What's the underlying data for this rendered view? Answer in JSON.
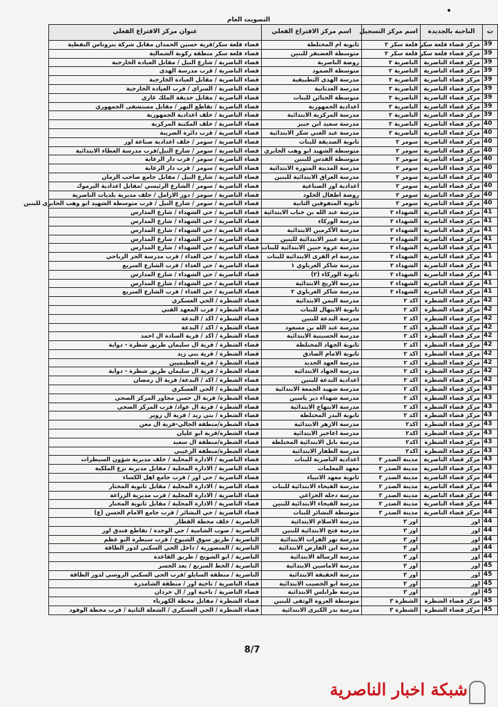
{
  "document": {
    "title": "التصويت العام",
    "page_number": "8/7"
  },
  "logo": {
    "text": "شبكة اخبار الناصرية",
    "color": "#c8161d"
  },
  "table": {
    "headers": [
      "ت",
      "الناحية بالجديدة",
      "اسم مركز التسجيل",
      "اسم مركز الاقتراع الفعلي",
      "عنوان مركز الاقتراع الفعلي"
    ],
    "rows": [
      [
        "39",
        "مركز قضاء قلعة سكر",
        "قلعة سكر ٢",
        "ثانوية ام المختلطة",
        "قضاء قلعة سكر/قرية حسين الحمدان مقابل شركة بتروناس النفطية"
      ],
      [
        "39",
        "مركز قضاء قلعة سكر",
        "قلعة سكر ٢",
        "متوسطة الغضنفر للبنين",
        "قضاء قلعة سكر منطقة ركوبة الشمالية"
      ],
      [
        "39",
        "مركز قضاء الناصرية",
        "الناصرية ٢",
        "روضة الناصرية",
        "قضاء الناصرية / شارع النيل / مقابل العيادة الخارجية"
      ],
      [
        "39",
        "مركز قضاء الناصرية",
        "الناصرية ٢",
        "متوسطة الصمود",
        "قضاء الناصرية / قرب مدرسة الهدى"
      ],
      [
        "39",
        "مركز قضاء الناصرية",
        "الناصرية ٢",
        "مدرسة الهدى التطبيقية",
        "قضاء الناصرية / مقابل العيادة الخارجية"
      ],
      [
        "39",
        "مركز قضاء الناصرية",
        "الناصرية ٢",
        "مدرسة العدنانية",
        "قضاء الناصرية / السراي / قرب العيادة الخارجية"
      ],
      [
        "39",
        "مركز قضاء الناصرية",
        "الناصرية ٢",
        "متوسطة الجنائن للبنات",
        "قضاء الناصرية / مقابل حديقة الملك غازي"
      ],
      [
        "39",
        "مركز قضاء الناصرية",
        "الناصرية ٢",
        "اعدادية الجمهورية",
        "قضاء الناصرية / تقاطع النهر / مقابل مستشفى الجمهوري"
      ],
      [
        "39",
        "مركز قضاء الناصرية",
        "الناصرية ٢",
        "مدرسة المركزية الابتدائية",
        "قضاء الناصرية / خلف اعدادية الجمهورية"
      ],
      [
        "40",
        "مركز قضاء الناصرية",
        "الناصرية ٢",
        "مدرسة سعيد ابن جبير",
        "قضاء الناصرية / خلف المكتبة المركزية"
      ],
      [
        "40",
        "مركز قضاء الناصرية",
        "الناصرية ٢",
        "مدرسة عبد الغني شكر الابتدائية",
        "قضاء الناصرية / قرب دائرة الضريبة"
      ],
      [
        "40",
        "مركز قضاء الناصرية",
        "سومر ٢",
        "ثانوية الصديقة للبنات",
        "قضاء الناصرية / سومر / خلف اعدادية صناعة اور"
      ],
      [
        "40",
        "مركز قضاء الناصرية",
        "سومر ٢",
        "متوسطة الشهيد ابو وهب الجابري",
        "قضاء الناصرية / سومر / شارع النيل/قرب مدرسة العطاء الابتدائية"
      ],
      [
        "40",
        "مركز قضاء الناصرية",
        "سومر ٢",
        "متوسطة القدس للبنين",
        "قضاء الناصرية / سومر / قرب دار الرعاية"
      ],
      [
        "40",
        "مركز قضاء الناصرية",
        "سومر ٢",
        "مدرسة المدينة المنورة الابتدائية",
        "قضاء الناصرية / سومر / قرب دار الرعاية"
      ],
      [
        "40",
        "مركز قضاء الناصرية",
        "سومر ٢",
        "مدرسة العراق الابتدائية للبنين",
        "قضاء الناصرية / شارع النيل / مقابل جامع صاحب الزمان"
      ],
      [
        "40",
        "مركز قضاء الناصرية",
        "سومر ٢",
        "اعدادية اور الصناعية",
        "قضاء الناصرية / سومر / الشارع الرئيسي /مقابل اعدادية اليرموك"
      ],
      [
        "40",
        "مركز قضاء الناصرية",
        "سومر ٢",
        "روضة اطفال الخلود",
        "قضاء الناصرية / سومر / دور الارامل / خلف مديرية بلديات الناصرية"
      ],
      [
        "40",
        "مركز قضاء الناصرية",
        "سومر ٢",
        "ثانوية المتفوقين الثانية",
        "قضاء الناصرية / سومر / شارع النيل / قرب متوسطة الشهيد ابو وهب الجابري للبنين"
      ],
      [
        "41",
        "مركز قضاء الناصرية",
        "الشهداء ٢",
        "مدرسة عبد الله بن خباب الابتدائية",
        "قضاء الناصرية / حي الشهداء / شارع المدارس"
      ],
      [
        "41",
        "مركز قضاء الناصرية",
        "الشهداء ٢",
        "مدرسة الوركاء",
        "قضاء الناصرية / حي الشهداء / شارع المدارس"
      ],
      [
        "41",
        "مركز قضاء الناصرية",
        "الشهداء ٢",
        "مدرسة الأكرمين الابتدائية",
        "قضاء الناصرية / حي الشهداء / شارع المدارس"
      ],
      [
        "41",
        "مركز قضاء الناصرية",
        "الشهداء ٢",
        "مدرسة عبير الابتدائية للبنين",
        "قضاء الناصرية / حي الشهداء / شارع المدارس"
      ],
      [
        "41",
        "مركز قضاء الناصرية",
        "الشهداء ٢",
        "مدرسة عروة حنين الابتدائية للبنات",
        "قضاء الناصرية / حي الشهداء / شارع المدارس"
      ],
      [
        "41",
        "مركز قضاء الناصرية",
        "الشهداء ٢",
        "مدرسة ام القرى الابتدائية للبنات",
        "قضاء الناصرية / حي الغداء / قرب مدرسة الحر الرياحي"
      ],
      [
        "41",
        "مركز قضاء الناصرية",
        "الشهداء ٢",
        "مدرسة شاكر الغرباوي ١",
        "قضاء الناصرية / حي الغداء / قرب الشارع السريع"
      ],
      [
        "41",
        "مركز قضاء الناصرية",
        "الشهداء ٢",
        "ثانوية الوركاء (٢)",
        "قضاء الناصرية / حي الشهداء / شارع المدارس"
      ],
      [
        "41",
        "مركز قضاء الناصرية",
        "الشهداء ٢",
        "مدرسة الاريج الابتدائية",
        "قضاء الناصرية / حي الشهداء / شارع المدارس"
      ],
      [
        "41",
        "مركز قضاء الناصرية",
        "الشهداء ٢",
        "مدرسة شاكر الغرباوي ٢",
        "قضاء الناصرية / حي الغداء / قرب الشارع السريع"
      ],
      [
        "42",
        "مركز قضاء الشطرة",
        "اكد ٢",
        "مدرسة اليمن الابتدائية",
        "قضاء الشطرة / الحي العسكري"
      ],
      [
        "42",
        "مركز قضاء الشطرة",
        "اكد ٢",
        "ثانوية الابتهال للبنات",
        "قضاء الشطرة / قرب المعهد الفني"
      ],
      [
        "42",
        "مركز قضاء الشطرة",
        "اكد ٢",
        "مدرسة البدعة للبنين",
        "قضاء الشطرة / اكد / البدعة"
      ],
      [
        "42",
        "مركز قضاء الشطرة",
        "اكد ٢",
        "مدرسة عبد الله بن مسعود",
        "قضاء الشطرة / اكد / البدعة"
      ],
      [
        "42",
        "مركز قضاء الشطرة",
        "اكد ٢",
        "مدرسة الحسينية الابتدائية",
        "قضاء الشطرة / اكد / قرية السادة ال احمد"
      ],
      [
        "42",
        "مركز قضاء الشطرة",
        "اكد ٢",
        "ثانوية الجهاد المختلطة",
        "قضاء الشطرة / قرية ال سليمان طريق شطرة - دواية"
      ],
      [
        "42",
        "مركز قضاء الشطرة",
        "اكد ٢",
        "ثانوية الامام الصادق",
        "قضاء الشطرة / قرية بني زيد"
      ],
      [
        "42",
        "مركز قضاء الشطرة",
        "اكد ٢",
        "مدرسة العهد الجديد",
        "قضاء الشطرة / قرية العظيميين"
      ],
      [
        "42",
        "مركز قضاء الشطرة",
        "اكد ٢",
        "مدرسة الجهاد الابتدائية",
        "قضاء الشطرة / قرية ال سليمان طريق شطرة - دواية"
      ],
      [
        "42",
        "مركز قضاء الشطرة",
        "اكد ٢",
        "اعدادية البدعة للبنين",
        "قضاء الشطرة / اكد / البدعة/ قرية ال رمضان"
      ],
      [
        "43",
        "مركز قضاء الشطرة",
        "اكد ٢",
        "مدرسة شهيد الجمعة الابتدائية",
        "قضاء الشطرة / الحي العسكري"
      ],
      [
        "43",
        "مركز قضاء الشطرة",
        "اكد ٢",
        "مدرسة شهداء دير ياسين",
        "قضاء الشطرة/ قرية ال حسن مجاور المركز الصحي"
      ],
      [
        "43",
        "مركز قضاء الشطرة",
        "اكد ٢",
        "مدرسة الابتهاج الابتدائية",
        "قضاء الشطرة / قرية ال عواد/ قرب المركز الصحي"
      ],
      [
        "43",
        "مركز قضاء الشطرة",
        "اكد ٢",
        "ثانوية البدر المختلطة",
        "قضاء الشطرة / بني زيد / قرية ال زوير"
      ],
      [
        "43",
        "مركز قضاء الشطرة",
        "اكد٢",
        "مدرسة الازهر الابتدائية",
        "قضاء الشطرة/منطقة الجالي-قرية ال معن"
      ],
      [
        "43",
        "مركز قضاء الشطرة",
        "اكد٢",
        "مدرسة اعاخير الابتدائية",
        "قضاء الشطرة/قرية ابو عليان"
      ],
      [
        "43",
        "مركز قضاء الشطرة",
        "اكد٢",
        "مدرسة بابل الابتدائية المختلطة",
        "قضاء الشطرة/منطقة ال سعيد"
      ],
      [
        "43",
        "مركز قضاء الشطرة",
        "اكد٢",
        "مدرسة الطفار الابتدائية",
        "قضاء الشطرة/منطقة الزعيبي"
      ],
      [
        "43",
        "مركز قضاء الناصرية",
        "مدينة الصدر ٢",
        "اعدادية الناصرية للبنات",
        "قضاء الناصرية / الادارة المحلية / خلف مديرية شؤون السيطرات"
      ],
      [
        "43",
        "مركز قضاء الناصرية",
        "مدينة الصدر ٢",
        "معهد المعلمات",
        "قضاء الناصرية / الادارة المحلية / مقابل مديرية نزع الملكية"
      ],
      [
        "44",
        "مركز قضاء الناصرية",
        "مدينة الصدر ٢",
        "ثانوية معهد الانبياء",
        "قضاء الناصرية / حي اور / قرب جامع اهل الكساء"
      ],
      [
        "44",
        "مركز قضاء الناصرية",
        "مدينة الصدر ٢",
        "مدرسة الفيحاء الابتدائية للبنات",
        "قضاء الناصرية / الادارة المحلية / مقابل ثانوية المختار"
      ],
      [
        "44",
        "مركز قضاء الناصرية",
        "مدينة الصدر ٢",
        "مدرسة دجلة الخزاعي",
        "قضاء الناصرية / الادارة المحلية / قرب مديرية الزراعة"
      ],
      [
        "44",
        "مركز قضاء الناصرية",
        "مدينة الصدر ٢",
        "مدرسة الفيحاء الابتدائية للبنين",
        "قضاء الناصرية / الادارة المحلية / مقابل ثانوية المختار"
      ],
      [
        "44",
        "مركز قضاء الناصرية",
        "مدينة الصدر ٢",
        "متوسطة البشائر للبنات",
        "قضاء الناصرية / حي البشائر / قرب جامع الامام الحسن (ع)"
      ],
      [
        "44",
        "اور",
        "اور ٣",
        "مدرسة الاسلام الابتدائية",
        "الناصرية / خلف محطة القطار"
      ],
      [
        "44",
        "اور",
        "اور ٣",
        "مدرسة فتح الابتدائية للبنين",
        "الناصرية / صوب الشامية / حي الوحدة / تقاطع فندق اور"
      ],
      [
        "44",
        "اور",
        "اور ٣",
        "مدرسة نهر الفرات الابتدائية",
        "الناصرية / طريق سوق الشيوخ / قرب سيطرة البو عظم"
      ],
      [
        "44",
        "اور",
        "اور ٣",
        "مدرسة ابن الفارض الابتدائية",
        "الناصرية / المنصورية / داخل الحي السكني لدور الطاقة"
      ],
      [
        "44",
        "اور",
        "اور ٣",
        "مدرسة الرسالة الابتدائية",
        "الناصرية / ابو الشويج / طريق القاعدة"
      ],
      [
        "45",
        "اور",
        "اور ٣",
        "مدرسة الاماسين الابتدائية",
        "الناصرية / الخط السريع / بعد الجسر"
      ],
      [
        "45",
        "اور",
        "اور ٣",
        "مدرسة الحقيقة الابتدائية",
        "الناصرية / منطقة السايلو /قرب الحي السكني الروسي لدور الطاقة"
      ],
      [
        "45",
        "اور",
        "اور ٣",
        "مدرسة ابو الخصيب الابتدائية",
        "قضاء الناصرية / ناحية اور / منطقة الشامدرة"
      ],
      [
        "45",
        "اور",
        "اور ٣",
        "مدرسة طرابلس الابتدائية",
        "قضاء الناصرية / ناحية اور / ال حردان"
      ],
      [
        "45",
        "مركز قضاء الشطرة",
        "الشطرة ٣",
        "متوسطة العروة الوثقى للبنين",
        "قضاء الشطرة / مقابل محطة الكهرباء"
      ],
      [
        "45",
        "مركز قضاء الشطرة",
        "الشطرة ٣",
        "مدرسة بدر الكبرى الابتدائية",
        "قضاء الشطرة / الحي العسكري / الشعلة الثانية / قرب محطة الوقود"
      ]
    ]
  }
}
